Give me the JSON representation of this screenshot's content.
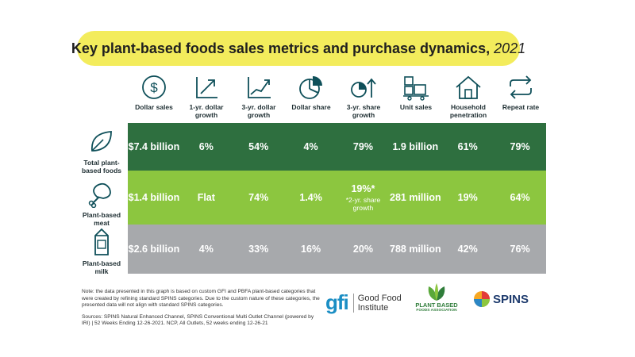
{
  "title": {
    "main": "Key plant-based foods sales metrics and purchase dynamics,",
    "year": "2021"
  },
  "colors": {
    "title_bg": "#f3ec5c",
    "row1": "#2e6f3f",
    "row2": "#8cc63f",
    "row3": "#a7a9ac",
    "icon": "#0e4f59"
  },
  "chart_data": {
    "type": "table",
    "title": "Key plant-based foods sales metrics and purchase dynamics, 2021",
    "columns": [
      {
        "label": "Dollar sales",
        "icon": "dollar-icon"
      },
      {
        "label": "1-yr. dollar growth",
        "icon": "trend-up-icon"
      },
      {
        "label": "3-yr. dollar growth",
        "icon": "growth-chart-icon"
      },
      {
        "label": "Dollar share",
        "icon": "pie-chart-icon"
      },
      {
        "label": "3-yr. share growth",
        "icon": "share-growth-icon"
      },
      {
        "label": "Unit sales",
        "icon": "boxes-icon"
      },
      {
        "label": "Household penetration",
        "icon": "house-icon"
      },
      {
        "label": "Repeat rate",
        "icon": "repeat-icon"
      }
    ],
    "rows": [
      {
        "label": "Total plant-based foods",
        "icon": "leaf-icon",
        "values": [
          "$7.4 billion",
          "6%",
          "54%",
          "4%",
          "79%",
          "1.9 billion",
          "61%",
          "79%"
        ]
      },
      {
        "label": "Plant-based meat",
        "icon": "drumstick-icon",
        "values": [
          "$1.4 billion",
          "Flat",
          "74%",
          "1.4%",
          "19%*",
          "281 million",
          "19%",
          "64%"
        ],
        "footnote": "*2-yr. share growth"
      },
      {
        "label": "Plant-based milk",
        "icon": "milk-carton-icon",
        "values": [
          "$2.6 billion",
          "4%",
          "33%",
          "16%",
          "20%",
          "788 million",
          "42%",
          "76%"
        ]
      }
    ]
  },
  "notes": {
    "note": "Note: the data presented in this graph is based on custom GFI and PBFA plant-based categories that were created by refining standard SPINS categories. Due to the custom nature of these categories, the presented data will not align with standard SPINS categories.",
    "sources": "Sources: SPINS Natural Enhanced Channel, SPINS Conventional Multi Outlet Channel (powered by IRI) | 52 Weeks Ending 12-26-2021. NCP, All Outlets, 52 weeks ending 12-26-21"
  },
  "logos": {
    "gfi_mark": "gfi",
    "gfi_line1": "Good Food",
    "gfi_line2": "Institute",
    "pba_line1": "PLANT BASED",
    "pba_line2": "FOODS ASSOCIATION",
    "spins": "SPINS"
  }
}
